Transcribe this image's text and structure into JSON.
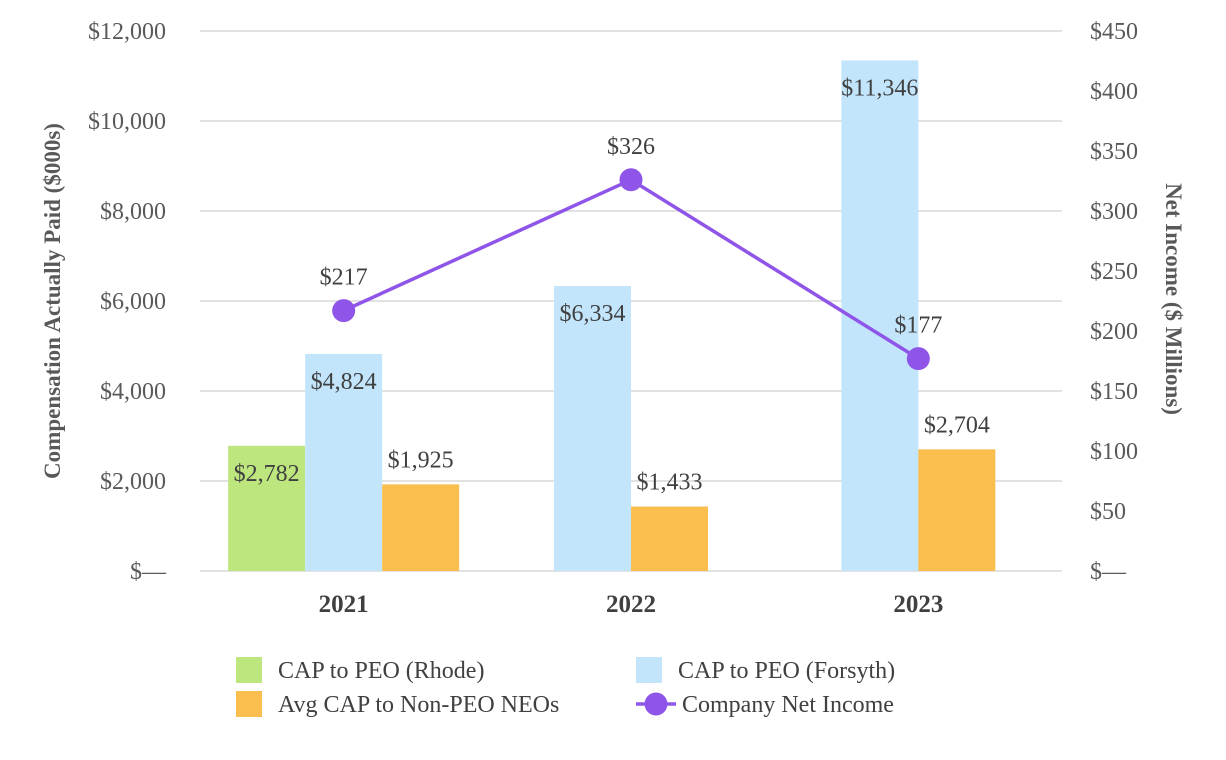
{
  "chart_data": {
    "type": "bar",
    "categories": [
      "2021",
      "2022",
      "2023"
    ],
    "y_left": {
      "label": "Compensation Actually Paid ($000s)",
      "ylim": [
        0,
        12000
      ],
      "ticks": [
        0,
        2000,
        4000,
        6000,
        8000,
        10000,
        12000
      ],
      "tick_labels": [
        "$—",
        "$2,000",
        "$4,000",
        "$6,000",
        "$8,000",
        "$10,000",
        "$12,000"
      ]
    },
    "y_right": {
      "label": "Net Income ($ Millions)",
      "ylim": [
        0,
        450
      ],
      "ticks": [
        0,
        50,
        100,
        150,
        200,
        250,
        300,
        350,
        400,
        450
      ],
      "tick_labels": [
        "$—",
        "$50",
        "$100",
        "$150",
        "$200",
        "$250",
        "$300",
        "$350",
        "$400",
        "$450"
      ]
    },
    "series": [
      {
        "name": "CAP to PEO (Rhode)",
        "kind": "bar",
        "axis": "left",
        "color": "#bde67f",
        "values": [
          2782,
          null,
          null
        ],
        "labels": [
          "$2,782",
          "",
          ""
        ]
      },
      {
        "name": "CAP to PEO (Forsyth)",
        "kind": "bar",
        "axis": "left",
        "color": "#c2e5fc",
        "values": [
          4824,
          6334,
          11346
        ],
        "labels": [
          "$4,824",
          "$6,334",
          "$11,346"
        ]
      },
      {
        "name": "Avg CAP to Non-PEO NEOs",
        "kind": "bar",
        "axis": "left",
        "color": "#f9be4e",
        "values": [
          1925,
          1433,
          2704
        ],
        "labels": [
          "$1,925",
          "$1,433",
          "$2,704"
        ]
      },
      {
        "name": "Company Net Income",
        "kind": "line",
        "axis": "right",
        "color": "#8f55e8",
        "values": [
          217,
          326,
          177
        ],
        "labels": [
          "$217",
          "$326",
          "$177"
        ]
      }
    ],
    "grid": true,
    "legend": "bottom"
  }
}
